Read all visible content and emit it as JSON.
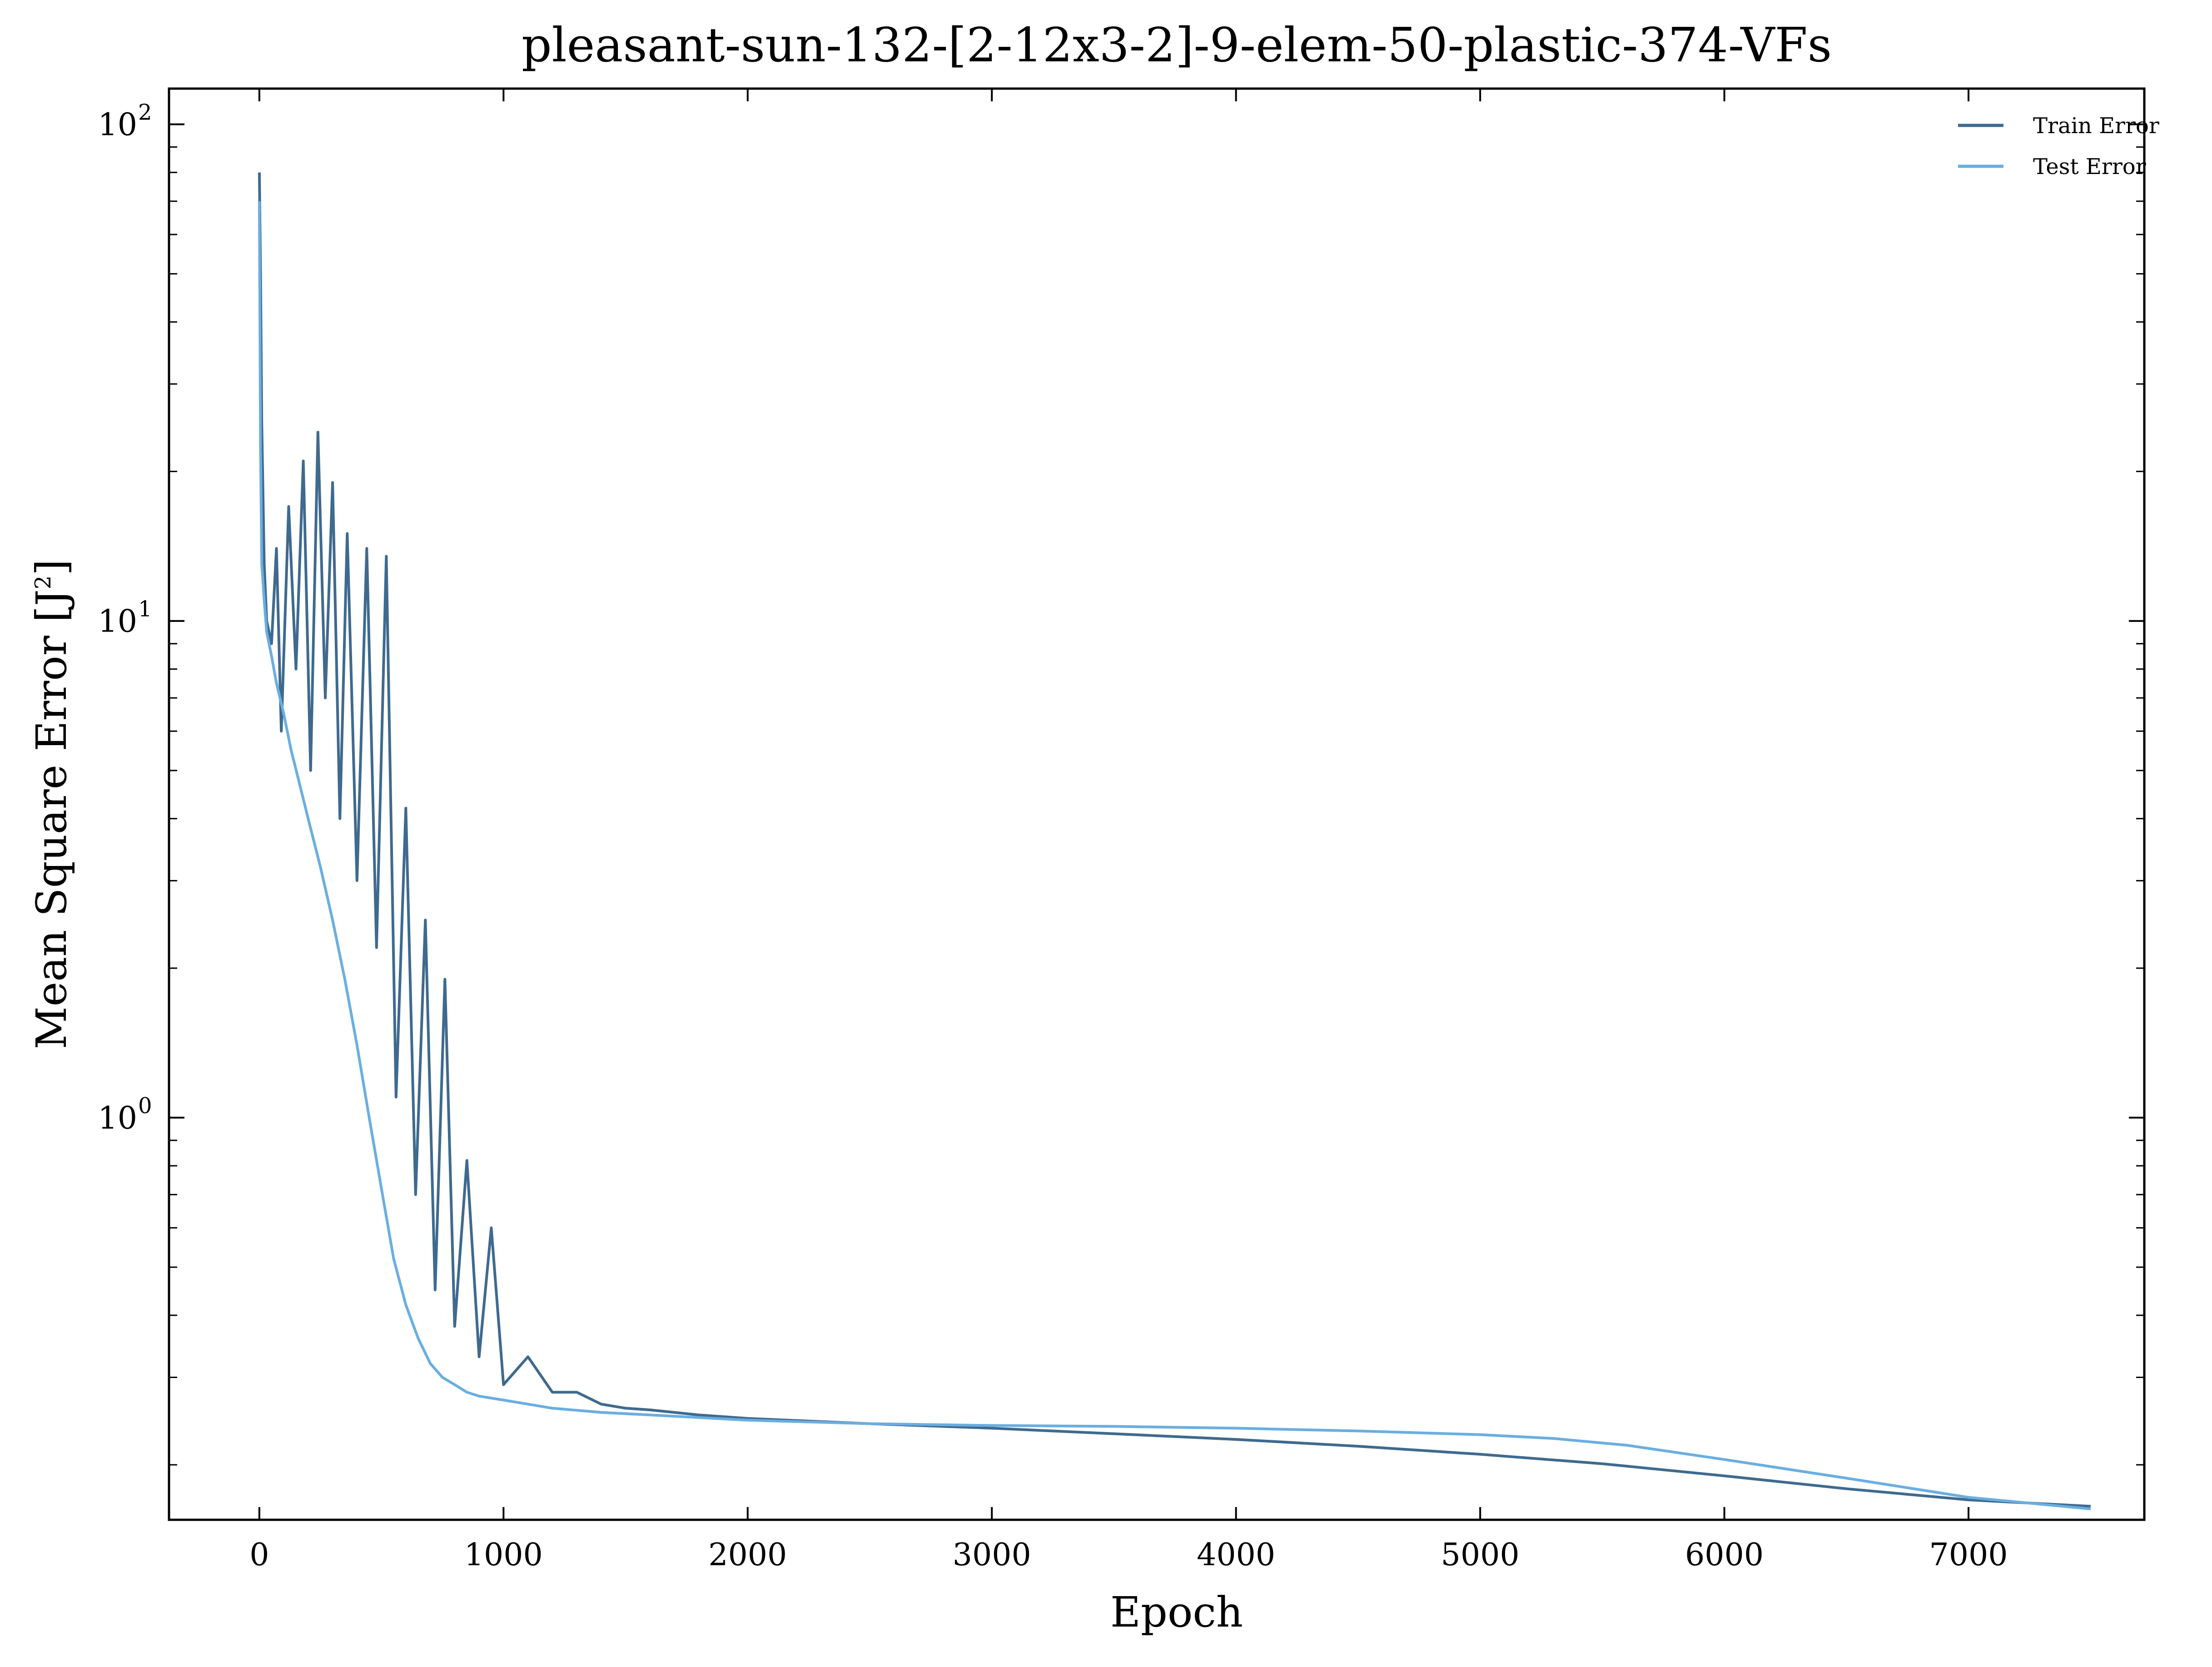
{
  "chart_data": {
    "type": "line",
    "title": "pleasant-sun-132-[2-12x3-2]-9-elem-50-plastic-374-VFs",
    "xlabel": "Epoch",
    "ylabel": "Mean Square Error [J",
    "ylabel_sup": "2",
    "ylabel_suffix": "]",
    "y_scale": "log",
    "xlim": [
      -370,
      7720
    ],
    "ylim": [
      0.155,
      118
    ],
    "x_ticks": [
      0,
      1000,
      2000,
      3000,
      4000,
      5000,
      6000,
      7000
    ],
    "x_tick_labels": [
      "0",
      "1000",
      "2000",
      "3000",
      "4000",
      "5000",
      "6000",
      "7000"
    ],
    "y_ticks": [
      {
        "value": 100,
        "base": "10",
        "exp": "2"
      },
      {
        "value": 10,
        "base": "10",
        "exp": "1"
      },
      {
        "value": 1,
        "base": "10",
        "exp": "0"
      }
    ],
    "grid": false,
    "legend_position": "top-right",
    "series": [
      {
        "name": "Train Error",
        "color": "#3f6a8f",
        "x": [
          0,
          5,
          10,
          20,
          30,
          50,
          70,
          90,
          120,
          150,
          180,
          210,
          240,
          270,
          300,
          330,
          360,
          400,
          440,
          480,
          520,
          560,
          600,
          640,
          680,
          720,
          760,
          800,
          850,
          900,
          950,
          1000,
          1100,
          1200,
          1300,
          1400,
          1500,
          1600,
          1800,
          2000,
          2500,
          3000,
          3500,
          4000,
          4500,
          5000,
          5500,
          6000,
          6500,
          7000,
          7500
        ],
        "y": [
          80,
          50,
          25,
          13,
          10,
          9,
          14,
          6,
          17,
          8,
          21,
          5,
          24,
          7,
          19,
          4,
          15,
          3,
          14,
          2.2,
          13.5,
          1.1,
          4.2,
          0.7,
          2.5,
          0.45,
          1.9,
          0.38,
          0.82,
          0.33,
          0.6,
          0.29,
          0.33,
          0.28,
          0.28,
          0.265,
          0.26,
          0.258,
          0.252,
          0.248,
          0.242,
          0.237,
          0.231,
          0.225,
          0.218,
          0.21,
          0.201,
          0.19,
          0.179,
          0.17,
          0.165
        ]
      },
      {
        "name": "Test Error",
        "color": "#6aaee0",
        "x": [
          0,
          5,
          10,
          20,
          30,
          50,
          70,
          100,
          130,
          160,
          200,
          250,
          300,
          350,
          400,
          450,
          500,
          550,
          600,
          650,
          700,
          750,
          800,
          850,
          900,
          1000,
          1100,
          1200,
          1400,
          1600,
          1800,
          2000,
          2500,
          3000,
          3500,
          4000,
          4500,
          5000,
          5300,
          5600,
          6000,
          6500,
          7000,
          7500
        ],
        "y": [
          70,
          22,
          13,
          11,
          9.5,
          8.5,
          7.5,
          6.5,
          5.5,
          4.8,
          4.0,
          3.2,
          2.5,
          1.9,
          1.4,
          1.0,
          0.72,
          0.52,
          0.42,
          0.36,
          0.32,
          0.3,
          0.29,
          0.28,
          0.275,
          0.27,
          0.265,
          0.26,
          0.255,
          0.252,
          0.249,
          0.246,
          0.242,
          0.24,
          0.239,
          0.237,
          0.234,
          0.23,
          0.226,
          0.219,
          0.205,
          0.188,
          0.172,
          0.163
        ]
      }
    ]
  }
}
